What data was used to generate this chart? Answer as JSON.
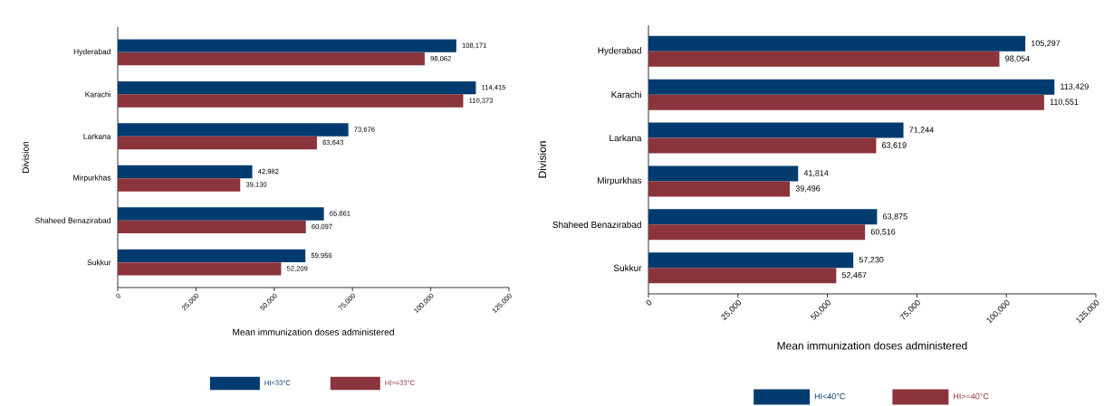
{
  "chart_data": [
    {
      "type": "bar",
      "orientation": "horizontal",
      "xlabel": "Mean immunization doses administered",
      "ylabel": "Division",
      "categories": [
        "Hyderabad",
        "Karachi",
        "Larkana",
        "Mirpurkhas",
        "Shaheed Benazirabad",
        "Sukkur"
      ],
      "series": [
        {
          "name": "HI<33°C",
          "color": "#003b6f",
          "values": [
            108171,
            114415,
            73676,
            42982,
            65861,
            59956
          ],
          "value_labels": [
            "108,171",
            "114,415",
            "73,676",
            "42,982",
            "65,861",
            "59,956"
          ]
        },
        {
          "name": "HI>=33°C",
          "color": "#8b343c",
          "values": [
            98062,
            110373,
            63643,
            39130,
            60097,
            52209
          ],
          "value_labels": [
            "98,062",
            "110,373",
            "63,643",
            "39,130",
            "60,097",
            "52,209"
          ]
        }
      ],
      "xlim": [
        0,
        125000
      ],
      "xticks": [
        0,
        {
          "value": 25000,
          "label": "25,000"
        },
        {
          "value": 50000,
          "label": "50,000"
        },
        {
          "value": 75000,
          "label": "75,000"
        },
        {
          "value": 100000,
          "label": "100,000"
        },
        {
          "value": 125000,
          "label": "125,000"
        }
      ],
      "legend": "bottom",
      "grid": false
    },
    {
      "type": "bar",
      "orientation": "horizontal",
      "xlabel": "Mean immunization doses administered",
      "ylabel": "Division",
      "categories": [
        "Hyderabad",
        "Karachi",
        "Larkana",
        "Mirpurkhas",
        "Shaheed Benazirabad",
        "Sukkur"
      ],
      "series": [
        {
          "name": "HI<40°C",
          "color": "#003b6f",
          "values": [
            105297,
            113429,
            71244,
            41814,
            63875,
            57230
          ],
          "value_labels": [
            "105,297",
            "113,429",
            "71,244",
            "41,814",
            "63,875",
            "57,230"
          ]
        },
        {
          "name": "HI>=40°C",
          "color": "#8b343c",
          "values": [
            98054,
            110551,
            63619,
            39496,
            60516,
            52467
          ],
          "value_labels": [
            "98,054",
            "110,551",
            "63,619",
            "39,496",
            "60,516",
            "52,467"
          ]
        }
      ],
      "xlim": [
        0,
        125000
      ],
      "xticks": [
        0,
        {
          "value": 25000,
          "label": "25,000"
        },
        {
          "value": 50000,
          "label": "50,000"
        },
        {
          "value": 75000,
          "label": "75,000"
        },
        {
          "value": 100000,
          "label": "100,000"
        },
        {
          "value": 125000,
          "label": "125,000"
        }
      ],
      "legend": "bottom",
      "grid": false
    }
  ]
}
